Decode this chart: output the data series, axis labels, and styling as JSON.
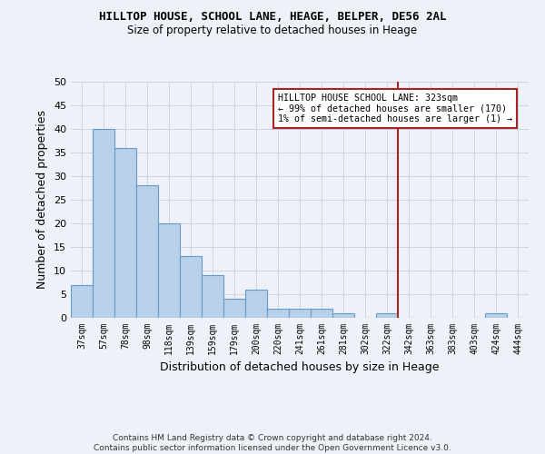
{
  "title": "HILLTOP HOUSE, SCHOOL LANE, HEAGE, BELPER, DE56 2AL",
  "subtitle": "Size of property relative to detached houses in Heage",
  "xlabel": "Distribution of detached houses by size in Heage",
  "ylabel": "Number of detached properties",
  "categories": [
    "37sqm",
    "57sqm",
    "78sqm",
    "98sqm",
    "118sqm",
    "139sqm",
    "159sqm",
    "179sqm",
    "200sqm",
    "220sqm",
    "241sqm",
    "261sqm",
    "281sqm",
    "302sqm",
    "322sqm",
    "342sqm",
    "363sqm",
    "383sqm",
    "403sqm",
    "424sqm",
    "444sqm"
  ],
  "values": [
    7,
    40,
    36,
    28,
    20,
    13,
    9,
    4,
    6,
    2,
    2,
    2,
    1,
    0,
    1,
    0,
    0,
    0,
    0,
    1,
    0
  ],
  "bar_color": "#b8d0e8",
  "bar_edge_color": "#6699cc",
  "vline_x_index": 14.5,
  "vline_color": "#aa2222",
  "annotation_text": "HILLTOP HOUSE SCHOOL LANE: 323sqm\n← 99% of detached houses are smaller (170)\n1% of semi-detached houses are larger (1) →",
  "annotation_box_color": "#ffffff",
  "annotation_box_edge": "#aa2222",
  "ylim": [
    0,
    50
  ],
  "yticks": [
    0,
    5,
    10,
    15,
    20,
    25,
    30,
    35,
    40,
    45,
    50
  ],
  "footnote": "Contains HM Land Registry data © Crown copyright and database right 2024.\nContains public sector information licensed under the Open Government Licence v3.0.",
  "bg_color": "#eef2f8",
  "grid_color": "#c8d4e4"
}
